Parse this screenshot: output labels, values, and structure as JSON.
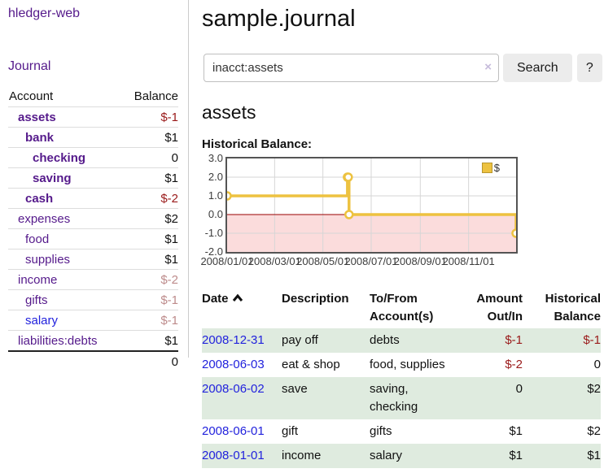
{
  "app": {
    "title": "hledger-web",
    "nav_journal": "Journal"
  },
  "sidebar": {
    "headers": {
      "account": "Account",
      "balance": "Balance"
    },
    "accounts": [
      {
        "name": "assets",
        "indent": 0,
        "bold": true,
        "balance": "$-1"
      },
      {
        "name": "bank",
        "indent": 1,
        "bold": true,
        "balance": "$1"
      },
      {
        "name": "checking",
        "indent": 2,
        "bold": true,
        "balance": "0"
      },
      {
        "name": "saving",
        "indent": 2,
        "bold": true,
        "balance": "$1"
      },
      {
        "name": "cash",
        "indent": 1,
        "bold": true,
        "balance": "$-2"
      },
      {
        "name": "expenses",
        "indent": 0,
        "bold": false,
        "balance": "$2"
      },
      {
        "name": "food",
        "indent": 1,
        "bold": false,
        "balance": "$1"
      },
      {
        "name": "supplies",
        "indent": 1,
        "bold": false,
        "balance": "$1"
      },
      {
        "name": "income",
        "indent": 0,
        "bold": false,
        "balance": "$-2"
      },
      {
        "name": "gifts",
        "indent": 1,
        "bold": false,
        "balance": "$-1"
      },
      {
        "name": "salary",
        "indent": 1,
        "bold": false,
        "balance": "$-1",
        "link_style": "blue"
      },
      {
        "name": "liabilities:debts",
        "indent": 0,
        "bold": false,
        "balance": "$1"
      }
    ],
    "total": "0"
  },
  "header": {
    "title": "sample.journal"
  },
  "search": {
    "query": "inacct:assets",
    "clear_icon": "×",
    "button": "Search",
    "help_button": "?"
  },
  "account_page": {
    "heading": "assets",
    "chart_title": "Historical Balance:"
  },
  "chart_data": {
    "type": "line",
    "title": "Historical Balance",
    "step": true,
    "ylim": [
      -2,
      3
    ],
    "x_range_days": [
      0,
      365
    ],
    "y_ticks": [
      {
        "label": "3.0",
        "value": 3
      },
      {
        "label": "2.0",
        "value": 2
      },
      {
        "label": "1.0",
        "value": 1
      },
      {
        "label": "0.0",
        "value": 0
      },
      {
        "label": "-1.0",
        "value": -1
      },
      {
        "label": "-2.0",
        "value": -2
      }
    ],
    "x_ticks": [
      {
        "label": "2008/01/01",
        "day": 0
      },
      {
        "label": "2008/03/01",
        "day": 60
      },
      {
        "label": "2008/05/01",
        "day": 121
      },
      {
        "label": "2008/07/01",
        "day": 182
      },
      {
        "label": "2008/09/01",
        "day": 244
      },
      {
        "label": "2008/11/01",
        "day": 305
      }
    ],
    "series": [
      {
        "name": "$",
        "color": "#edc240",
        "points": [
          {
            "date": "2008-01-01",
            "day": 0,
            "value": 1
          },
          {
            "date": "2008-06-01",
            "day": 152,
            "value": 2
          },
          {
            "date": "2008-06-02",
            "day": 153,
            "value": 2
          },
          {
            "date": "2008-06-03",
            "day": 154,
            "value": 0
          },
          {
            "date": "2008-12-31",
            "day": 365,
            "value": -1
          }
        ]
      }
    ],
    "grid": true,
    "legend_position": "top-right",
    "negative_region_fill": "#fbdcdc",
    "zero_line_color": "#990000"
  },
  "register": {
    "headers": {
      "date": "Date",
      "description": "Description",
      "account": "To/From Account(s)",
      "amount": "Amount Out/In",
      "balance": "Historical Balance"
    },
    "rows": [
      {
        "date": "2008-12-31",
        "description": "pay off",
        "accounts": "debts",
        "amount": "$-1",
        "balance": "$-1"
      },
      {
        "date": "2008-06-03",
        "description": "eat & shop",
        "accounts": "food, supplies",
        "amount": "$-2",
        "balance": "0"
      },
      {
        "date": "2008-06-02",
        "description": "save",
        "accounts": "saving, checking",
        "amount": "0",
        "balance": "$2"
      },
      {
        "date": "2008-06-01",
        "description": "gift",
        "accounts": "gifts",
        "amount": "$1",
        "balance": "$2"
      },
      {
        "date": "2008-01-01",
        "description": "income",
        "accounts": "salary",
        "amount": "$1",
        "balance": "$1"
      }
    ]
  },
  "colors": {
    "link-purple": "#551a8b",
    "link-blue": "#2222dd",
    "negative-red": "#9a1a1a",
    "negative-rose": "#bd8b8b",
    "row-green": "#dfebdf",
    "chart-gold": "#edc240",
    "chart-negative-fill": "#fbdcdc",
    "chart-zero-line": "#990000"
  }
}
